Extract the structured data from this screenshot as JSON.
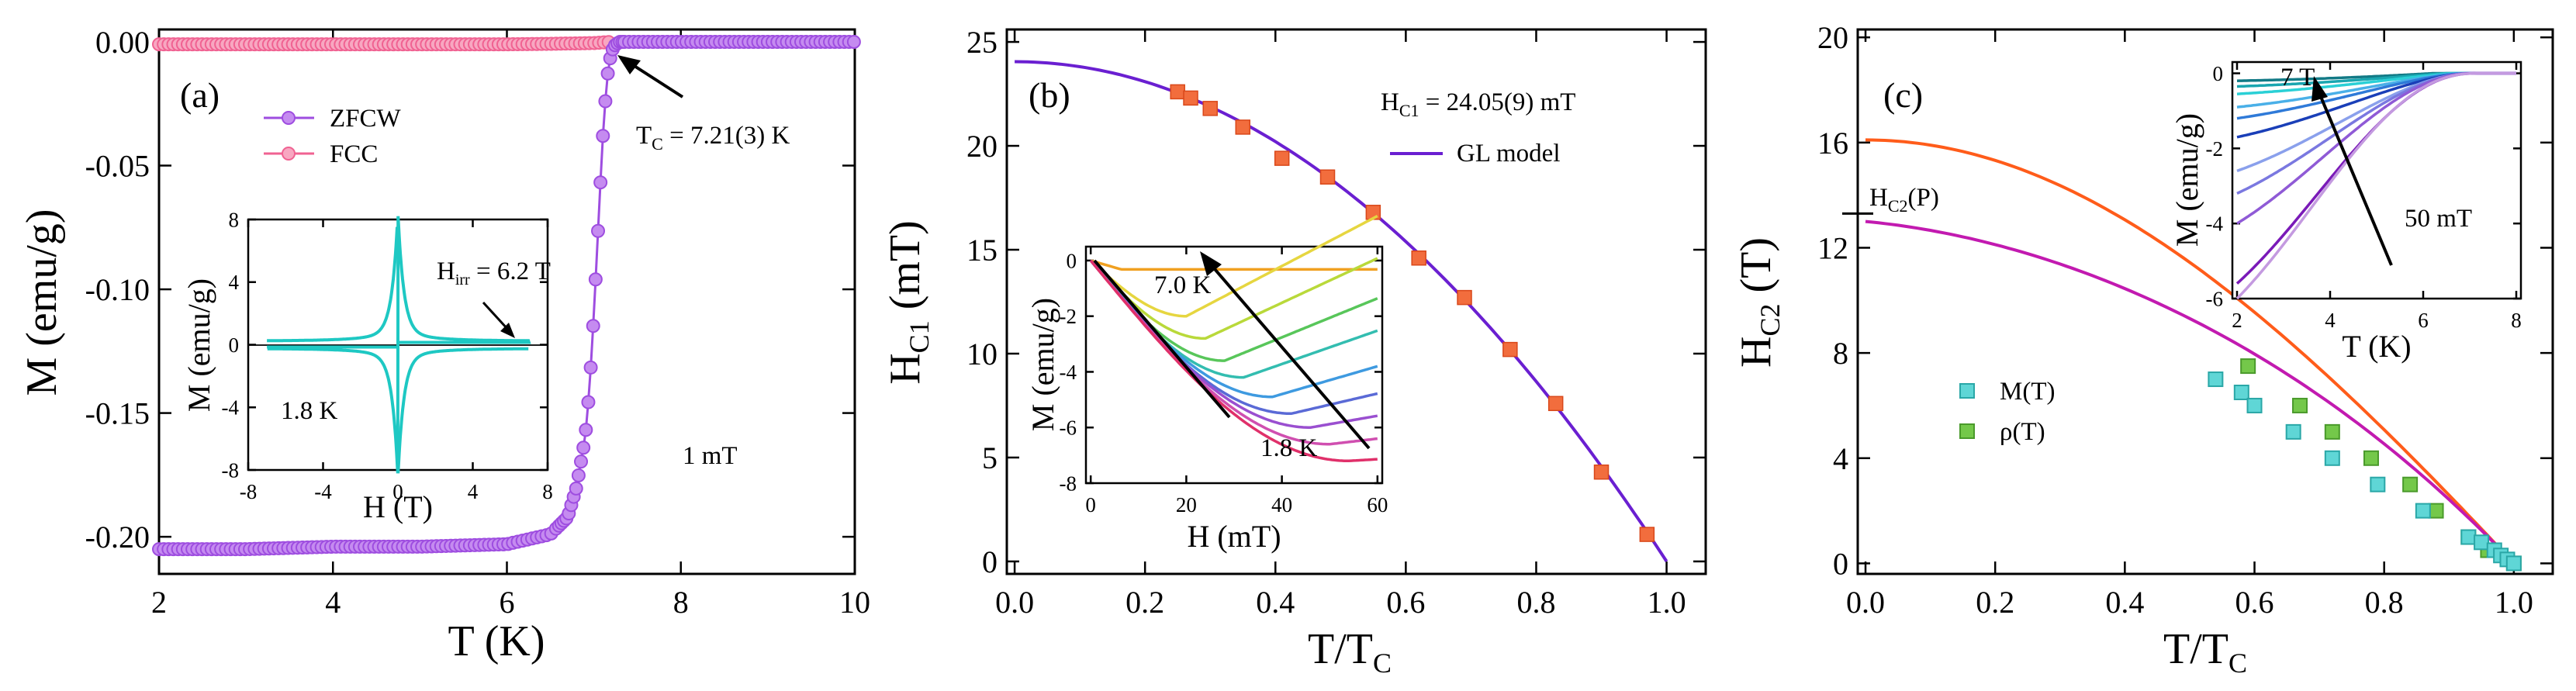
{
  "panels": {
    "a": {
      "label": "(a)",
      "tc_text": "T",
      "tc_sub": "C",
      "tc_rest": " = 7.21(3) K",
      "field_text": "1 mT",
      "inset_hirr": "H",
      "inset_hirr_sub": "irr",
      "inset_hirr_rest": " = 6.2 T",
      "inset_temp": "1.8 K"
    },
    "b": {
      "label": "(b)",
      "hc1_text": "H",
      "hc1_sub": "C1",
      "hc1_rest": " = 24.05(9) mT",
      "legend_gl": "GL model",
      "inset_7k": "7.0 K",
      "inset_18k": "1.8 K"
    },
    "c": {
      "label": "(c)",
      "hc2p": "H",
      "hc2p_sub": "C2",
      "hc2p_rest": "(P)",
      "legend_m": "M(T)",
      "legend_rho": "ρ(T)",
      "inset_7t": "7 T",
      "inset_50mt": "50 mT"
    }
  },
  "colors": {
    "zfcw": "#9e4de0",
    "fcc": "#f06292",
    "square": "#f26d3d",
    "gl": "#6a1fd1",
    "cyan": "#1ec8c3",
    "orange_line": "#ff5c1a",
    "magenta_line": "#c21ab0",
    "m_square": "#5fd6d6",
    "rho_square": "#74c84a"
  },
  "chart_data": [
    {
      "type": "scatter",
      "title": "",
      "xlabel": "T (K)",
      "ylabel": "M (emu/g)",
      "xlim": [
        2,
        10
      ],
      "ylim": [
        -0.215,
        0.005
      ],
      "xticks": [
        "2",
        "4",
        "6",
        "8",
        "10"
      ],
      "yticks": [
        "0.00",
        "-0.05",
        "-0.10",
        "-0.15",
        "-0.20"
      ],
      "series": [
        {
          "name": "ZFCW",
          "x": [
            2.0,
            3.0,
            4.0,
            5.0,
            6.0,
            6.5,
            6.7,
            6.8,
            6.9,
            6.95,
            7.0,
            7.05,
            7.1,
            7.15,
            7.2,
            7.25,
            7.3,
            7.5,
            8.0,
            9.0,
            10.0
          ],
          "y": [
            -0.205,
            -0.205,
            -0.204,
            -0.204,
            -0.203,
            -0.199,
            -0.192,
            -0.18,
            -0.16,
            -0.14,
            -0.11,
            -0.075,
            -0.04,
            -0.015,
            -0.004,
            -0.001,
            0.0,
            0.0,
            0.0,
            0.0,
            0.0
          ]
        },
        {
          "name": "FCC",
          "x": [
            2.0,
            3.0,
            4.0,
            5.0,
            6.0,
            6.5,
            7.0,
            7.2
          ],
          "y": [
            -0.001,
            -0.001,
            -0.001,
            -0.001,
            -0.001,
            -0.0008,
            -0.0005,
            0.0
          ]
        }
      ],
      "inset": {
        "xlabel": "H (T)",
        "ylabel": "M (emu/g)",
        "xlim": [
          -8,
          8
        ],
        "ylim": [
          -8,
          8
        ],
        "xticks": [
          "-8",
          "-4",
          "0",
          "4",
          "8"
        ],
        "yticks": [
          "8",
          "4",
          "0",
          "-4",
          "-8"
        ],
        "description_series": "M-H loop at 1.8 K"
      }
    },
    {
      "type": "scatter",
      "title": "",
      "xlabel": "T/T",
      "xlabel_sub": "C",
      "ylabel": "H",
      "ylabel_sub": "C1",
      "ylabel_rest": " (mT)",
      "xlim": [
        0.0,
        1.0
      ],
      "ylim": [
        0,
        25
      ],
      "xticks": [
        "0.0",
        "0.2",
        "0.4",
        "0.6",
        "0.8",
        "1.0"
      ],
      "yticks": [
        "0",
        "5",
        "10",
        "15",
        "20",
        "25"
      ],
      "points": {
        "x": [
          0.25,
          0.27,
          0.3,
          0.35,
          0.41,
          0.48,
          0.55,
          0.62,
          0.69,
          0.76,
          0.83,
          0.9,
          0.97
        ],
        "y": [
          22.6,
          22.3,
          21.8,
          20.9,
          19.4,
          18.5,
          16.8,
          14.6,
          12.7,
          10.2,
          7.6,
          4.3,
          1.3
        ]
      },
      "gl_model": {
        "hc1_0": 24.05
      },
      "inset": {
        "xlabel": "H (mT)",
        "ylabel": "M (emu/g)",
        "xlim": [
          0,
          60
        ],
        "ylim": [
          -8,
          0.5
        ],
        "xticks": [
          "0",
          "20",
          "40",
          "60"
        ],
        "yticks": [
          "0",
          "-2",
          "-4",
          "-6",
          "-8"
        ]
      }
    },
    {
      "type": "line",
      "title": "",
      "xlabel": "T/T",
      "xlabel_sub": "C",
      "ylabel": "H",
      "ylabel_sub": "C2",
      "ylabel_rest": " (T)",
      "xlim": [
        0.0,
        1.0
      ],
      "ylim": [
        0,
        20
      ],
      "xticks": [
        "0.0",
        "0.2",
        "0.4",
        "0.6",
        "0.8",
        "1.0"
      ],
      "yticks": [
        "0",
        "4",
        "8",
        "12",
        "16",
        "20"
      ],
      "series": [
        {
          "name": "M(T)",
          "x": [
            0.54,
            0.58,
            0.6,
            0.66,
            0.72,
            0.79,
            0.86,
            0.93,
            0.95,
            0.97,
            0.98,
            0.99,
            1.0
          ],
          "y": [
            7.0,
            6.5,
            6.0,
            5.0,
            4.0,
            3.0,
            2.0,
            1.0,
            0.8,
            0.5,
            0.3,
            0.15,
            0.0
          ]
        },
        {
          "name": "ρ(T)",
          "x": [
            0.59,
            0.67,
            0.72,
            0.78,
            0.84,
            0.88,
            0.93,
            0.96,
            1.0
          ],
          "y": [
            7.5,
            6.0,
            5.0,
            4.0,
            3.0,
            2.0,
            1.0,
            0.5,
            0.0
          ]
        }
      ],
      "fit_lines": {
        "hc2_orange_0": 16.1,
        "hc2_magenta_0": 13.0,
        "hc2_p": 13.3
      },
      "inset": {
        "xlabel": "T (K)",
        "ylabel": "M (emu/g)",
        "xlim": [
          2,
          8
        ],
        "ylim": [
          -6,
          0.3
        ],
        "xticks": [
          "2",
          "4",
          "6",
          "8"
        ],
        "yticks": [
          "0",
          "-2",
          "-4",
          "-6"
        ]
      }
    }
  ]
}
